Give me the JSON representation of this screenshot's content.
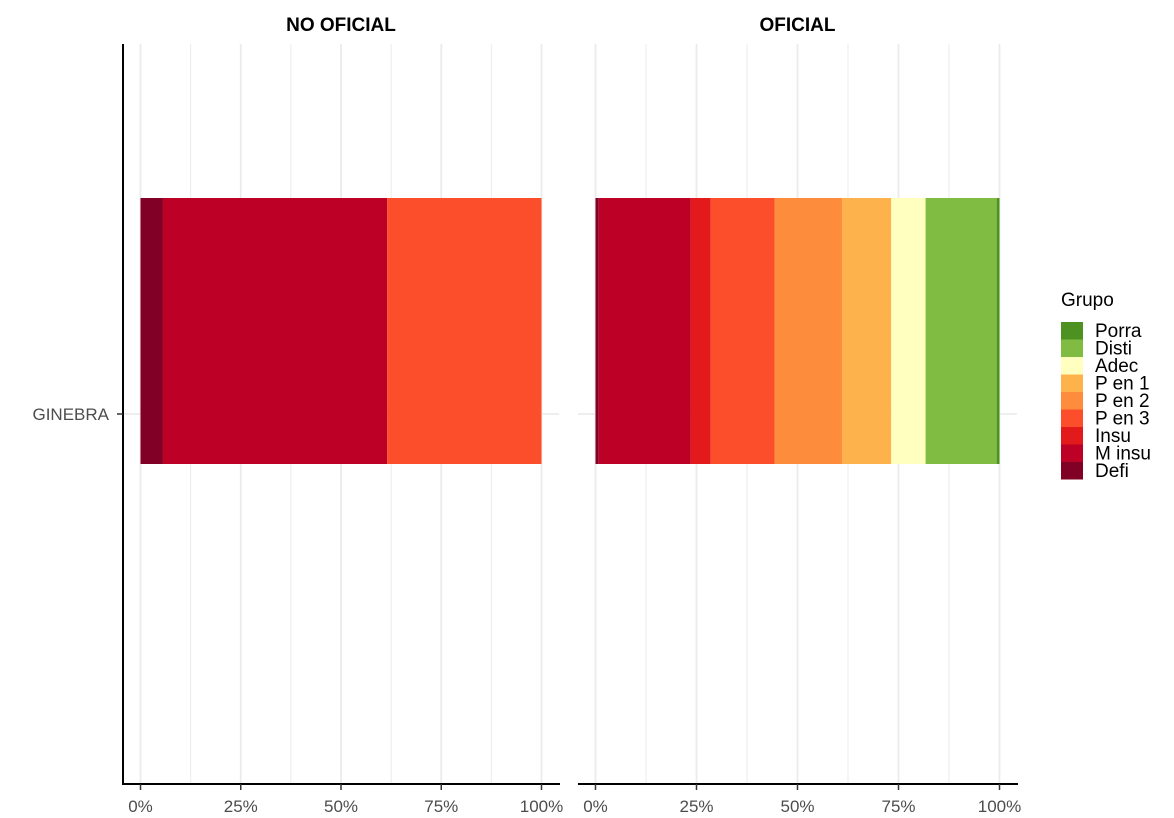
{
  "chart_data": {
    "type": "bar",
    "orientation": "horizontal",
    "stacked": "percent",
    "category": "GINEBRA",
    "x_ticks": [
      "0%",
      "25%",
      "50%",
      "75%",
      "100%"
    ],
    "xlim": [
      0,
      100
    ],
    "grid": true,
    "legend_position": "right",
    "legend": {
      "title": "Grupo",
      "entries": [
        {
          "name": "Porra",
          "color": "#4d9221"
        },
        {
          "name": "Disti",
          "color": "#7fbc41"
        },
        {
          "name": "Adec",
          "color": "#ffffbf"
        },
        {
          "name": "P en 1",
          "color": "#feb24c"
        },
        {
          "name": "P en 2",
          "color": "#fd8d3c"
        },
        {
          "name": "P en 3",
          "color": "#fc4e2a"
        },
        {
          "name": "Insu",
          "color": "#e31a1c"
        },
        {
          "name": "M insu",
          "color": "#bd0026"
        },
        {
          "name": "Defi",
          "color": "#800026"
        }
      ]
    },
    "panels": [
      {
        "title": "NO OFICIAL",
        "segments": [
          {
            "group": "Defi",
            "start": 0,
            "end": 5.6
          },
          {
            "group": "M insu",
            "start": 5.6,
            "end": 61.5
          },
          {
            "group": "P en 3",
            "start": 61.5,
            "end": 100
          }
        ]
      },
      {
        "title": "OFICIAL",
        "segments": [
          {
            "group": "Defi",
            "start": 0,
            "end": 0.8
          },
          {
            "group": "M insu",
            "start": 0.8,
            "end": 23.6
          },
          {
            "group": "Insu",
            "start": 23.6,
            "end": 28.5
          },
          {
            "group": "P en 3",
            "start": 28.5,
            "end": 44.3
          },
          {
            "group": "P en 2",
            "start": 44.3,
            "end": 61.1
          },
          {
            "group": "P en 1",
            "start": 61.1,
            "end": 73.2
          },
          {
            "group": "Adec",
            "start": 73.2,
            "end": 81.7
          },
          {
            "group": "Disti",
            "start": 81.7,
            "end": 99.3
          },
          {
            "group": "Porra",
            "start": 99.3,
            "end": 100
          }
        ]
      }
    ]
  }
}
